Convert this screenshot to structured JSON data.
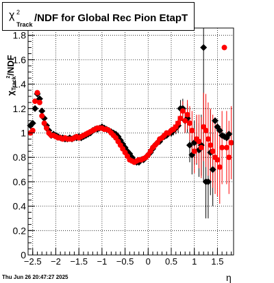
{
  "title": {
    "symbol": "χ",
    "sup": "2",
    "sub": "Track",
    "text": "/NDF for Global Rec Pion EtapT"
  },
  "axes": {
    "ylabel_symbol": "χ",
    "ylabel_sup": "2",
    "ylabel_sub": "Track",
    "ylabel_text": "/NDF",
    "xlabel": "η"
  },
  "timestamp": "Thu Jun 26 20:47:27 2025",
  "colors": {
    "series_black": "#000000",
    "series_red": "#ff0000",
    "grid": "#000000"
  },
  "chart_data": {
    "type": "scatter",
    "xlim": [
      -2.6,
      1.85
    ],
    "ylim": [
      0,
      1.86
    ],
    "xticks": [
      -2.5,
      -2,
      -1.5,
      -1,
      -0.5,
      0,
      0.5,
      1,
      1.5
    ],
    "xtick_labels": [
      "−2.5",
      "−2",
      "−1.5",
      "−1",
      "−0.5",
      "0",
      "0.5",
      "1",
      "1.5"
    ],
    "yticks": [
      0,
      0.2,
      0.4,
      0.6,
      0.8,
      1,
      1.2,
      1.4,
      1.6,
      1.8
    ],
    "ytick_labels": [
      "0",
      "0.2",
      "0.4",
      "0.6",
      "0.8",
      "1",
      "1.2",
      "1.4",
      "1.6",
      "1.8"
    ],
    "grid": true,
    "series": [
      {
        "marker": "diamond",
        "color": "#000000",
        "x": [
          -2.55,
          -2.5,
          -2.45,
          -2.4,
          -2.35,
          -2.3,
          -2.25,
          -2.2,
          -2.15,
          -2.1,
          -2.05,
          -2.0,
          -1.95,
          -1.9,
          -1.85,
          -1.8,
          -1.75,
          -1.7,
          -1.65,
          -1.6,
          -1.55,
          -1.5,
          -1.45,
          -1.4,
          -1.35,
          -1.3,
          -1.25,
          -1.2,
          -1.15,
          -1.1,
          -1.05,
          -1.0,
          -0.95,
          -0.9,
          -0.85,
          -0.8,
          -0.75,
          -0.7,
          -0.65,
          -0.6,
          -0.55,
          -0.5,
          -0.45,
          -0.4,
          -0.35,
          -0.3,
          -0.25,
          -0.2,
          -0.15,
          -0.1,
          -0.05,
          0.0,
          0.05,
          0.1,
          0.15,
          0.2,
          0.25,
          0.3,
          0.35,
          0.4,
          0.45,
          0.5,
          0.55,
          0.6,
          0.65,
          0.7,
          0.75,
          0.8,
          0.85,
          0.9,
          0.95,
          1.0,
          1.05,
          1.1,
          1.15,
          1.2,
          1.25,
          1.3,
          1.35,
          1.4,
          1.45,
          1.5,
          1.55,
          1.6,
          1.65,
          1.7,
          1.75
        ],
        "y": [
          1.06,
          1.08,
          1.2,
          1.32,
          1.28,
          1.18,
          1.12,
          1.06,
          1.02,
          0.98,
          0.99,
          0.98,
          0.97,
          0.96,
          0.96,
          0.95,
          0.95,
          0.96,
          0.95,
          0.96,
          0.96,
          0.97,
          0.96,
          0.97,
          0.98,
          0.99,
          1.0,
          1.02,
          1.03,
          1.03,
          1.04,
          1.05,
          1.04,
          1.03,
          1.02,
          1.01,
          1.0,
          0.99,
          0.97,
          0.94,
          0.91,
          0.88,
          0.85,
          0.83,
          0.8,
          0.77,
          0.76,
          0.76,
          0.78,
          0.78,
          0.8,
          0.82,
          0.84,
          0.87,
          0.9,
          0.92,
          0.93,
          0.96,
          0.97,
          0.98,
          1.0,
          1.0,
          1.02,
          1.04,
          1.06,
          1.2,
          1.2,
          1.1,
          1.12,
          0.9,
          0.82,
          0.92,
          0.94,
          0.86,
          0.9,
          1.7,
          0.6,
          0.6,
          0.84,
          0.7,
          1.1,
          1.05,
          1.02,
          0.98,
          0.97,
          0.96,
          0.99
        ],
        "yerr": [
          0.02,
          0.02,
          0.02,
          0.02,
          0.02,
          0.02,
          0.01,
          0.01,
          0.01,
          0.01,
          0.01,
          0.01,
          0.01,
          0.01,
          0.01,
          0.01,
          0.01,
          0.01,
          0.01,
          0.01,
          0.01,
          0.01,
          0.01,
          0.01,
          0.01,
          0.01,
          0.01,
          0.01,
          0.01,
          0.01,
          0.01,
          0.01,
          0.01,
          0.01,
          0.01,
          0.01,
          0.01,
          0.01,
          0.01,
          0.01,
          0.01,
          0.01,
          0.01,
          0.01,
          0.01,
          0.01,
          0.01,
          0.01,
          0.01,
          0.01,
          0.01,
          0.01,
          0.01,
          0.01,
          0.01,
          0.01,
          0.02,
          0.02,
          0.02,
          0.02,
          0.03,
          0.03,
          0.04,
          0.05,
          0.06,
          0.07,
          0.08,
          0.1,
          0.12,
          0.14,
          0.16,
          0.18,
          0.2,
          0.22,
          0.25,
          1.1,
          0.3,
          0.3,
          0.35,
          0.3,
          0,
          0,
          0,
          0,
          0,
          0,
          0
        ]
      },
      {
        "marker": "circle",
        "color": "#ff0000",
        "x": [
          -2.55,
          -2.5,
          -2.45,
          -2.4,
          -2.35,
          -2.3,
          -2.25,
          -2.2,
          -2.15,
          -2.1,
          -2.05,
          -2.0,
          -1.95,
          -1.9,
          -1.85,
          -1.8,
          -1.75,
          -1.7,
          -1.65,
          -1.6,
          -1.55,
          -1.5,
          -1.45,
          -1.4,
          -1.35,
          -1.3,
          -1.25,
          -1.2,
          -1.15,
          -1.1,
          -1.05,
          -1.0,
          -0.95,
          -0.9,
          -0.85,
          -0.8,
          -0.75,
          -0.7,
          -0.65,
          -0.6,
          -0.55,
          -0.5,
          -0.45,
          -0.4,
          -0.35,
          -0.3,
          -0.25,
          -0.2,
          -0.15,
          -0.1,
          -0.05,
          0.0,
          0.05,
          0.1,
          0.15,
          0.2,
          0.25,
          0.3,
          0.35,
          0.4,
          0.45,
          0.5,
          0.55,
          0.6,
          0.65,
          0.7,
          0.75,
          0.8,
          0.85,
          0.9,
          0.95,
          1.0,
          1.05,
          1.1,
          1.15,
          1.2,
          1.25,
          1.3,
          1.35,
          1.4,
          1.45,
          1.5,
          1.55,
          1.6,
          1.65,
          1.7,
          1.75,
          1.8
        ],
        "y": [
          1.0,
          1.02,
          1.26,
          1.33,
          1.25,
          1.14,
          1.08,
          1.04,
          1.0,
          0.98,
          0.98,
          0.97,
          0.96,
          0.96,
          0.95,
          0.96,
          0.95,
          0.95,
          0.95,
          0.96,
          0.97,
          0.96,
          0.97,
          0.98,
          0.99,
          1.0,
          1.01,
          1.02,
          1.03,
          1.04,
          1.04,
          1.04,
          1.03,
          1.03,
          1.02,
          1.0,
          0.98,
          0.96,
          0.93,
          0.9,
          0.87,
          0.84,
          0.81,
          0.78,
          0.77,
          0.76,
          0.77,
          0.78,
          0.78,
          0.79,
          0.8,
          0.82,
          0.85,
          0.88,
          0.9,
          0.92,
          0.95,
          0.96,
          0.98,
          1.0,
          1.0,
          1.02,
          1.03,
          1.05,
          1.08,
          1.12,
          1.18,
          1.1,
          1.15,
          1.08,
          1.02,
          0.85,
          0.95,
          0.93,
          0.88,
          1.05,
          1.02,
          0.95,
          0.9,
          0.85,
          0.8,
          0.78,
          0.72,
          0.88,
          1.7,
          0.88,
          0.8,
          0.92
        ],
        "yerr": [
          0.02,
          0.02,
          0.02,
          0.02,
          0.02,
          0.02,
          0.01,
          0.01,
          0.01,
          0.01,
          0.01,
          0.01,
          0.01,
          0.01,
          0.01,
          0.01,
          0.01,
          0.01,
          0.01,
          0.01,
          0.01,
          0.01,
          0.01,
          0.01,
          0.01,
          0.01,
          0.01,
          0.01,
          0.01,
          0.01,
          0.01,
          0.01,
          0.01,
          0.01,
          0.01,
          0.01,
          0.01,
          0.01,
          0.01,
          0.01,
          0.01,
          0.01,
          0.01,
          0.01,
          0.01,
          0.01,
          0.01,
          0.01,
          0.01,
          0.01,
          0.01,
          0.01,
          0.01,
          0.01,
          0.01,
          0.01,
          0.02,
          0.02,
          0.02,
          0.02,
          0.03,
          0.03,
          0.04,
          0.05,
          0.06,
          0.07,
          0.08,
          0.1,
          0.12,
          0.14,
          0.16,
          0.18,
          0.2,
          0.22,
          0.25,
          0.28,
          0.3,
          0.3,
          0.3,
          0.3,
          0.3,
          0.3,
          0.3,
          0.3,
          0,
          0.3,
          0.3,
          0.3
        ]
      }
    ]
  }
}
